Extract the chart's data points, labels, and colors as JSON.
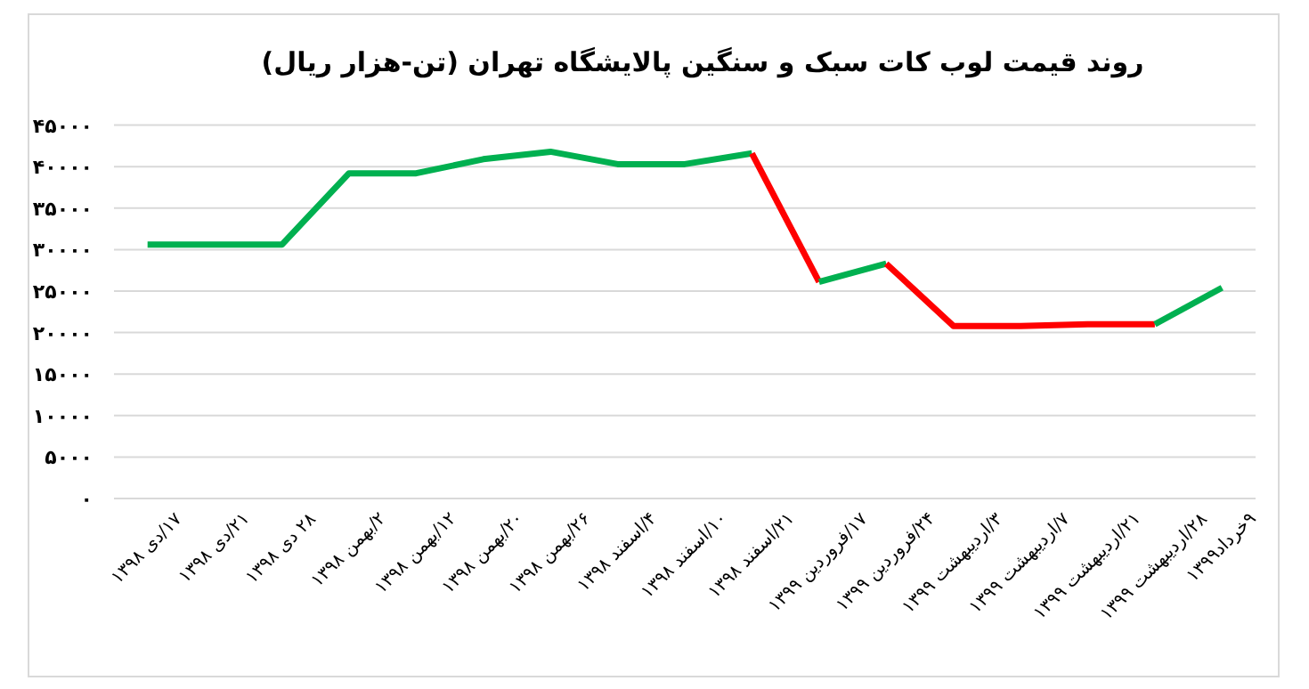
{
  "chart_data": {
    "type": "line",
    "title": "روند قیمت لوب کات سبک و سنگین پالایشگاه تهران (تن-هزار ریال)",
    "categories": [
      "۱۷/دی ۱۳۹۸",
      "۲۱/دی ۱۳۹۸",
      "۲۸ دی ۱۳۹۸",
      "۲/بهمن ۱۳۹۸",
      "۱۲/بهمن ۱۳۹۸",
      "۲۰/بهمن ۱۳۹۸",
      "۲۶/بهمن ۱۳۹۸",
      "۴/اسفند ۱۳۹۸",
      "۱۰/اسفند ۱۳۹۸",
      "۲۱/اسفند ۱۳۹۸",
      "۱۷/فروردین ۱۳۹۹",
      "۲۴/فروردین ۱۳۹۹",
      "۳/اردیبهشت ۱۳۹۹",
      "۷/اردیبهشت ۱۳۹۹",
      "۲۱/اردیبهشت ۱۳۹۹",
      "۲۸/اردیبهشت ۱۳۹۹",
      "۹خرداد۱۳۹۹"
    ],
    "series": [
      {
        "color": "#00b050",
        "values": [
          30600,
          30600,
          30600,
          39200,
          39200,
          40900,
          41800,
          40300,
          40300,
          41600,
          null,
          null,
          null,
          null,
          null,
          null,
          null
        ]
      },
      {
        "color": "#ff0000",
        "values": [
          null,
          null,
          null,
          null,
          null,
          null,
          null,
          null,
          null,
          41600,
          26100,
          null,
          null,
          null,
          null,
          null,
          null
        ]
      },
      {
        "color": "#00b050",
        "values": [
          null,
          null,
          null,
          null,
          null,
          null,
          null,
          null,
          null,
          null,
          26100,
          28300,
          null,
          null,
          null,
          null,
          null
        ]
      },
      {
        "color": "#ff0000",
        "values": [
          null,
          null,
          null,
          null,
          null,
          null,
          null,
          null,
          null,
          null,
          null,
          28300,
          20800,
          20800,
          21000,
          21000,
          null
        ]
      },
      {
        "color": "#00b050",
        "values": [
          null,
          null,
          null,
          null,
          null,
          null,
          null,
          null,
          null,
          null,
          null,
          null,
          null,
          null,
          null,
          21000,
          25400
        ]
      }
    ],
    "ylim": [
      0,
      45000
    ],
    "yticks": [
      {
        "value": 0,
        "label": "۰"
      },
      {
        "value": 5000,
        "label": "۵۰۰۰"
      },
      {
        "value": 10000,
        "label": "۱۰۰۰۰"
      },
      {
        "value": 15000,
        "label": "۱۵۰۰۰"
      },
      {
        "value": 20000,
        "label": "۲۰۰۰۰"
      },
      {
        "value": 25000,
        "label": "۲۵۰۰۰"
      },
      {
        "value": 30000,
        "label": "۳۰۰۰۰"
      },
      {
        "value": 35000,
        "label": "۳۵۰۰۰"
      },
      {
        "value": 40000,
        "label": "۴۰۰۰۰"
      },
      {
        "value": 45000,
        "label": "۴۵۰۰۰"
      }
    ],
    "grid": "y"
  }
}
